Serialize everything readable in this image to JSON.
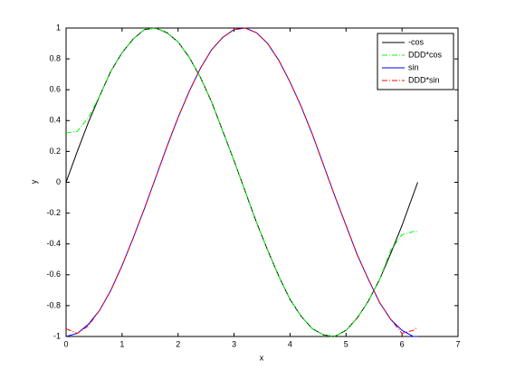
{
  "chart_data": {
    "type": "line",
    "xlabel": "x",
    "ylabel": "y",
    "x": [
      0,
      0.2,
      0.4,
      0.6,
      0.8,
      1.0,
      1.2,
      1.4,
      1.6,
      1.8,
      2.0,
      2.2,
      2.4,
      2.6,
      2.8,
      3.0,
      3.2,
      3.4,
      3.6,
      3.8,
      4.0,
      4.2,
      4.4,
      4.6,
      4.8,
      5.0,
      5.2,
      5.4,
      5.6,
      5.8,
      6.0,
      6.2,
      6.28
    ],
    "series": [
      {
        "name": "-cos",
        "color": "#000000",
        "dash": "solid",
        "values": [
          0,
          0.2,
          0.39,
          0.56,
          0.72,
          0.84,
          0.93,
          0.99,
          1.0,
          0.97,
          0.91,
          0.81,
          0.68,
          0.52,
          0.33,
          0.14,
          -0.06,
          -0.26,
          -0.44,
          -0.61,
          -0.76,
          -0.87,
          -0.95,
          -0.99,
          -1.0,
          -0.96,
          -0.88,
          -0.77,
          -0.63,
          -0.46,
          -0.28,
          -0.08,
          0
        ]
      },
      {
        "name": "DDD*cos",
        "color": "#00ff00",
        "dash": "dashdot",
        "values": [
          0.32,
          0.33,
          0.42,
          0.56,
          0.72,
          0.84,
          0.93,
          0.99,
          1.0,
          0.97,
          0.91,
          0.81,
          0.68,
          0.52,
          0.33,
          0.14,
          -0.06,
          -0.26,
          -0.44,
          -0.61,
          -0.76,
          -0.87,
          -0.95,
          -0.99,
          -1.0,
          -0.96,
          -0.88,
          -0.77,
          -0.63,
          -0.44,
          -0.34,
          -0.32,
          -0.32
        ]
      },
      {
        "name": "sin",
        "color": "#0000ff",
        "dash": "solid",
        "values": [
          -1,
          -0.98,
          -0.92,
          -0.83,
          -0.7,
          -0.54,
          -0.36,
          -0.17,
          0.03,
          0.23,
          0.42,
          0.59,
          0.74,
          0.86,
          0.94,
          0.99,
          1.0,
          0.97,
          0.9,
          0.79,
          0.65,
          0.49,
          0.31,
          0.11,
          -0.09,
          -0.28,
          -0.47,
          -0.63,
          -0.78,
          -0.89,
          -0.96,
          -1.0,
          -1
        ]
      },
      {
        "name": "DDD*sin",
        "color": "#ff0000",
        "dash": "dashdot",
        "values": [
          -0.95,
          -0.98,
          -0.93,
          -0.83,
          -0.7,
          -0.54,
          -0.36,
          -0.17,
          0.03,
          0.23,
          0.42,
          0.59,
          0.74,
          0.86,
          0.94,
          0.99,
          1.0,
          0.97,
          0.9,
          0.79,
          0.65,
          0.49,
          0.31,
          0.11,
          -0.09,
          -0.28,
          -0.47,
          -0.63,
          -0.78,
          -0.89,
          -0.98,
          -0.96,
          -0.94
        ]
      }
    ],
    "xlim": [
      0,
      7
    ],
    "xticks": [
      0,
      1,
      2,
      3,
      4,
      5,
      6,
      7
    ],
    "ylim": [
      -1,
      1
    ],
    "yticks": [
      -1,
      -0.8,
      -0.6,
      -0.4,
      -0.2,
      0,
      0.2,
      0.4,
      0.6,
      0.8,
      1
    ],
    "legend": "top-right"
  }
}
